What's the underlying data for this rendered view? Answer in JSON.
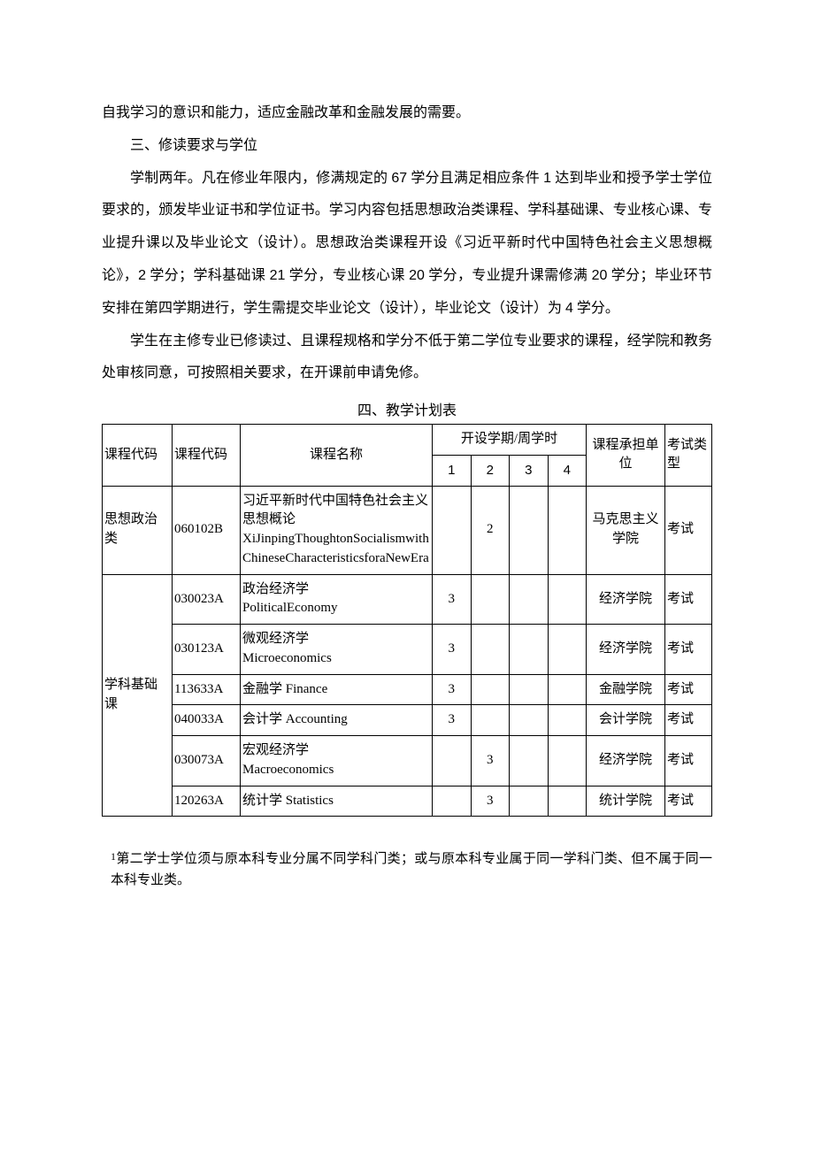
{
  "paragraphs": {
    "p1": "自我学习的意识和能力，适应金融改革和金融发展的需要。",
    "p2": "三、修读要求与学位",
    "p3_1": "学制两年。凡在修业年限内，修满规定的 ",
    "p3_credits_total": "67",
    "p3_2": " 学分且满足相应条件 ",
    "p3_cond": "1",
    "p3_3": " 达到毕业和授予学士学位要求的，颁发毕业证书和学位证书。学习内容包括思想政治类课程、学科基础课、专业核心课、专业提升课以及毕业论文（设计）。思想政治类课程开设《习近平新时代中国特色社会主义思想概论》，",
    "p3_credits_ideol": "2",
    "p3_4": " 学分；学科基础课 ",
    "p3_credits_fund": "21",
    "p3_5": " 学分，专业核心课 ",
    "p3_credits_core": "20",
    "p3_6": " 学分，专业提升课需修满 ",
    "p3_credits_adv": "20",
    "p3_7": " 学分；毕业环节安排在第四学期进行，学生需提交毕业论文（设计），毕业论文（设计）为 ",
    "p3_credits_thesis": "4",
    "p3_8": " 学分。",
    "p4": "学生在主修专业已修读过、且课程规格和学分不低于第二学位专业要求的课程，经学院和教务处审核同意，可按照相关要求，在开课前申请免修。",
    "table_caption": "四、教学计划表"
  },
  "table": {
    "headers": {
      "category": "课程代码",
      "code": "课程代码",
      "name": "课程名称",
      "sem_group": "开设学期/周学时",
      "sem1": "1",
      "sem2": "2",
      "sem3": "3",
      "sem4": "4",
      "unit": "课程承担单位",
      "exam": "考试类型"
    },
    "categories": {
      "ideological": "思想政治类",
      "foundation": "学科基础课"
    },
    "rows": [
      {
        "code": "060102B",
        "name": "习近平新时代中国特色社会主义思想概论\nXiJinpingThoughtonSocialismwithChineseCharacteristicsforaNewEra",
        "s1": "",
        "s2": "2",
        "s3": "",
        "s4": "",
        "unit": "马克思主义学院",
        "exam": "考试"
      },
      {
        "code": "030023A",
        "name": "政治经济学\nPoliticalEconomy",
        "s1": "3",
        "s2": "",
        "s3": "",
        "s4": "",
        "unit": "经济学院",
        "exam": "考试"
      },
      {
        "code": "030123A",
        "name": "微观经济学\nMicroeconomics",
        "s1": "3",
        "s2": "",
        "s3": "",
        "s4": "",
        "unit": "经济学院",
        "exam": "考试"
      },
      {
        "code": "113633A",
        "name": "金融学 Finance",
        "s1": "3",
        "s2": "",
        "s3": "",
        "s4": "",
        "unit": "金融学院",
        "exam": "考试"
      },
      {
        "code": "040033A",
        "name": "会计学 Accounting",
        "s1": "3",
        "s2": "",
        "s3": "",
        "s4": "",
        "unit": "会计学院",
        "exam": "考试"
      },
      {
        "code": "030073A",
        "name": "宏观经济学\nMacroeconomics",
        "s1": "",
        "s2": "3",
        "s3": "",
        "s4": "",
        "unit": "经济学院",
        "exam": "考试"
      },
      {
        "code": "120263A",
        "name": "统计学 Statistics",
        "s1": "",
        "s2": "3",
        "s3": "",
        "s4": "",
        "unit": "统计学院",
        "exam": "考试"
      }
    ]
  },
  "footnote": {
    "marker": "1",
    "text": "第二学士学位须与原本科专业分属不同学科门类；或与原本科专业属于同一学科门类、但不属于同一本科专业类。"
  }
}
